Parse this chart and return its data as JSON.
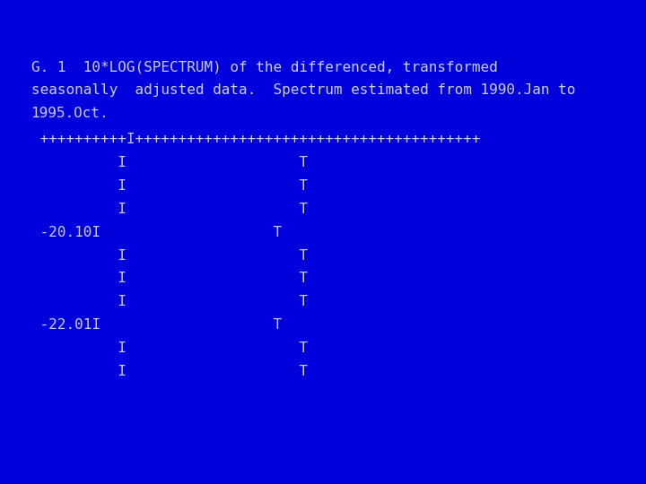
{
  "background_color": "#0000DD",
  "text_color": "#CCCCFF",
  "title_lines": [
    "G. 1  10*LOG(SPECTRUM) of the differenced, transformed",
    "seasonally  adjusted data.  Spectrum estimated from 1990.Jan to",
    "1995.Oct."
  ],
  "ruler_line": " ++++++++++I++++++++++++++++++++++++++++++++++++++++",
  "body_lines": [
    "          I                    T",
    "          I                    T",
    "          I                    T",
    " -20.10I                    T",
    "          I                    T",
    "          I                    T",
    "          I                    T",
    " -22.01I                    T",
    "          I                    T",
    "          I                    T"
  ],
  "font_size": 11.5,
  "font_family": "monospace",
  "fig_width": 7.2,
  "fig_height": 5.4,
  "dpi": 100
}
